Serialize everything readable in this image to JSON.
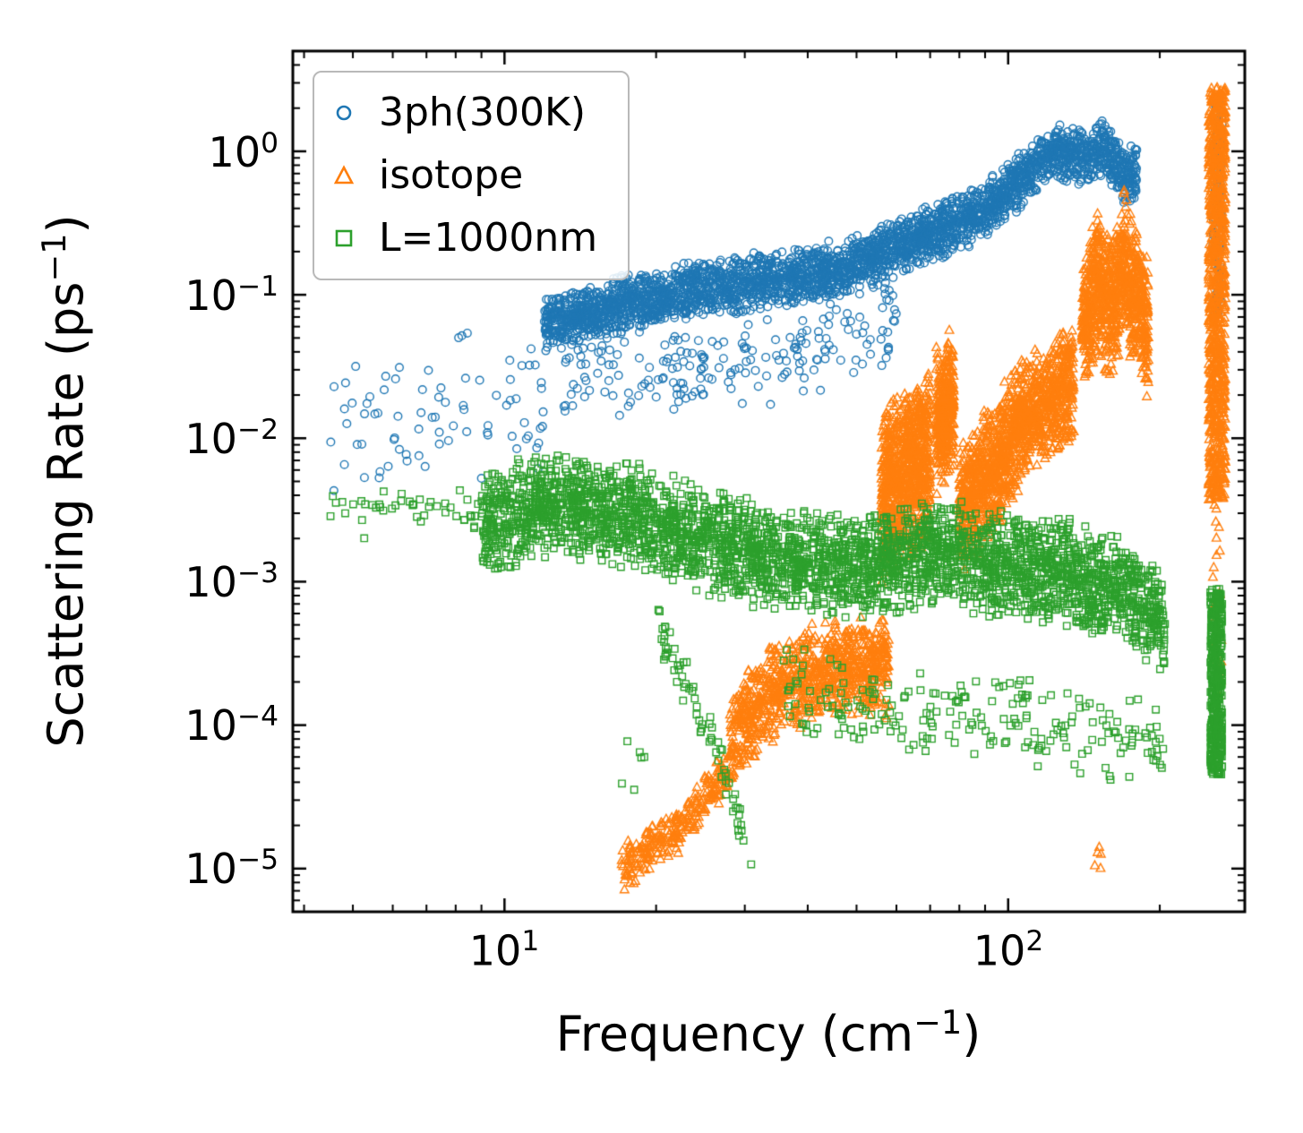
{
  "figure": {
    "background": "#ffffff",
    "frame_color": "#000000"
  },
  "chart_data": {
    "type": "scatter",
    "title": "",
    "xscale": "log",
    "yscale": "log",
    "grid": "off",
    "xlim": [
      3.8,
      295
    ],
    "ylim": [
      5e-06,
      5
    ],
    "xlabel": {
      "pre": "Frequency (cm",
      "sup": "−1",
      "post": ")"
    },
    "ylabel": {
      "pre": "Scattering Rate (ps",
      "sup": "−1",
      "post": ")"
    },
    "xticks": [
      {
        "value": 10,
        "base": "10",
        "exp": "1"
      },
      {
        "value": 100,
        "base": "10",
        "exp": "2"
      }
    ],
    "yticks": [
      {
        "value": 1,
        "base": "10",
        "exp": "0"
      },
      {
        "value": 0.1,
        "base": "10",
        "exp": "−1"
      },
      {
        "value": 0.01,
        "base": "10",
        "exp": "−2"
      },
      {
        "value": 0.001,
        "base": "10",
        "exp": "−3"
      },
      {
        "value": 0.0001,
        "base": "10",
        "exp": "−4"
      },
      {
        "value": 1e-05,
        "base": "10",
        "exp": "−5"
      }
    ],
    "minor_xticks": [
      4,
      5,
      6,
      7,
      8,
      9,
      20,
      30,
      40,
      50,
      60,
      70,
      80,
      90,
      200
    ],
    "legend": {
      "position": "upper left"
    },
    "series": [
      {
        "name": "3ph(300K)",
        "marker": "circle",
        "color": "#1f77b4",
        "clusters": [
          {
            "anchors": [
              [
                4.5,
                0.01
              ],
              [
                12,
                0.02
              ]
            ],
            "spread": 0.6,
            "n": 80,
            "dist": "tri"
          },
          {
            "anchors": [
              [
                12,
                0.063
              ],
              [
                18,
                0.089
              ],
              [
                25,
                0.112
              ],
              [
                35,
                0.126
              ],
              [
                50,
                0.158
              ],
              [
                65,
                0.24
              ],
              [
                80,
                0.316
              ],
              [
                95,
                0.447
              ],
              [
                110,
                0.76
              ],
              [
                125,
                1.0
              ],
              [
                140,
                0.89
              ],
              [
                155,
                1.05
              ],
              [
                170,
                0.66
              ],
              [
                180,
                0.76
              ]
            ],
            "spread": 0.22,
            "n": 3200,
            "dist": "tri"
          },
          {
            "anchors": [
              [
                13,
                0.025
              ],
              [
                30,
                0.032
              ],
              [
                45,
                0.05
              ],
              [
                60,
                0.063
              ]
            ],
            "spread": 0.35,
            "n": 200,
            "dist": "tri"
          },
          {
            "anchors": [
              [
                255,
                0.4
              ],
              [
                266,
                0.4
              ]
            ],
            "spread": 0.75,
            "n": 130,
            "dist": "uni"
          }
        ]
      },
      {
        "name": "isotope",
        "marker": "triangle",
        "color": "#ff7f0e",
        "clusters": [
          {
            "anchors": [
              [
                17,
                1e-05
              ],
              [
                22,
                1.8e-05
              ],
              [
                28,
                5e-05
              ]
            ],
            "spread": 0.18,
            "n": 260,
            "dist": "tri"
          },
          {
            "anchors": [
              [
                28,
                8e-05
              ],
              [
                35,
                0.00018
              ],
              [
                45,
                0.00025
              ],
              [
                58,
                0.00025
              ]
            ],
            "spread": 0.38,
            "n": 900,
            "dist": "tri"
          },
          {
            "anchors": [
              [
                56,
                0.004
              ],
              [
                70,
                0.008
              ]
            ],
            "spread": 0.65,
            "n": 800,
            "dist": "tri"
          },
          {
            "anchors": [
              [
                72,
                0.013
              ],
              [
                78,
                0.018
              ]
            ],
            "spread": 0.55,
            "n": 350,
            "dist": "tri"
          },
          {
            "anchors": [
              [
                80,
                0.0032
              ],
              [
                95,
                0.0063
              ],
              [
                105,
                0.013
              ]
            ],
            "spread": 0.5,
            "n": 700,
            "dist": "tri"
          },
          {
            "anchors": [
              [
                105,
                0.013
              ],
              [
                120,
                0.018
              ],
              [
                135,
                0.025
              ]
            ],
            "spread": 0.45,
            "n": 550,
            "dist": "tri"
          },
          {
            "anchors": [
              [
                140,
                0.063
              ],
              [
                150,
                0.126
              ],
              [
                160,
                0.079
              ],
              [
                170,
                0.158
              ],
              [
                180,
                0.1
              ],
              [
                190,
                0.05
              ]
            ],
            "spread": 0.55,
            "n": 900,
            "dist": "tri"
          },
          {
            "anchors": [
              [
                250,
                0.1
              ],
              [
                270,
                0.1
              ]
            ],
            "spread": 1.45,
            "n": 900,
            "dist": "uni"
          },
          {
            "anchors": [
              [
                255,
                0.001
              ],
              [
                265,
                0.0005
              ]
            ],
            "spread": 0.7,
            "n": 30,
            "dist": "uni"
          },
          {
            "anchors": [
              [
                148,
                1.5e-05
              ],
              [
                155,
                1.5e-05
              ]
            ],
            "spread": 0.25,
            "n": 5,
            "dist": "uni"
          }
        ]
      },
      {
        "name": "L=1000nm",
        "marker": "square",
        "color": "#2ca02c",
        "clusters": [
          {
            "anchors": [
              [
                4.5,
                0.0032
              ],
              [
                9,
                0.0028
              ]
            ],
            "spread": 0.22,
            "n": 45,
            "dist": "tri"
          },
          {
            "anchors": [
              [
                9,
                0.0025
              ],
              [
                13,
                0.0035
              ],
              [
                18,
                0.0028
              ],
              [
                25,
                0.002
              ],
              [
                35,
                0.0014
              ],
              [
                50,
                0.00126
              ],
              [
                70,
                0.0016
              ],
              [
                90,
                0.0014
              ],
              [
                110,
                0.00126
              ],
              [
                130,
                0.00112
              ],
              [
                150,
                0.001
              ],
              [
                170,
                0.0009
              ],
              [
                190,
                0.00063
              ],
              [
                205,
                0.0005
              ]
            ],
            "spread": 0.4,
            "n": 3400,
            "dist": "tri"
          },
          {
            "anchors": [
              [
                20,
                0.0005
              ],
              [
                26,
                8e-05
              ],
              [
                31,
                1e-05
              ]
            ],
            "spread": 0.18,
            "n": 70,
            "dist": "tri"
          },
          {
            "anchors": [
              [
                35,
                0.00016
              ],
              [
                70,
                0.000126
              ],
              [
                120,
                0.0001
              ],
              [
                170,
                8e-05
              ],
              [
                205,
                6.3e-05
              ]
            ],
            "spread": 0.35,
            "n": 220,
            "dist": "tri"
          },
          {
            "anchors": [
              [
                252,
                0.0002
              ],
              [
                266,
                0.0002
              ]
            ],
            "spread": 0.65,
            "n": 450,
            "dist": "uni"
          },
          {
            "anchors": [
              [
                17,
                6e-05
              ],
              [
                19,
                6e-05
              ]
            ],
            "spread": 0.3,
            "n": 6,
            "dist": "uni"
          }
        ]
      }
    ]
  }
}
